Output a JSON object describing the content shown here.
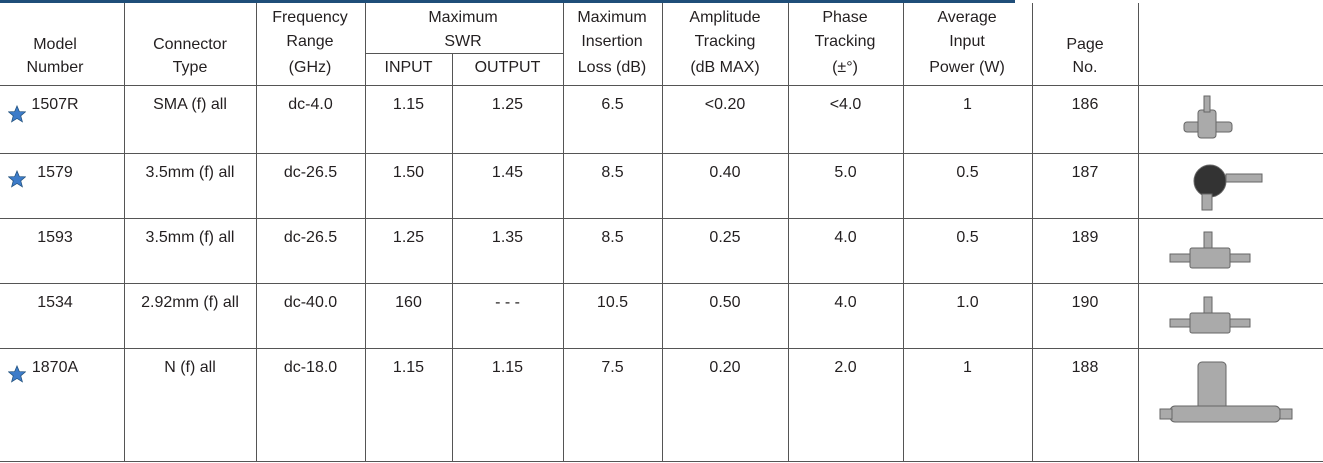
{
  "table": {
    "header": [
      [
        "Model",
        "Number"
      ],
      [
        "Connector",
        "Type"
      ],
      [
        "Frequency",
        "Range",
        "(GHz)"
      ],
      [
        "Maximum",
        "SWR"
      ],
      [
        "Maximum",
        "Insertion",
        "Loss (dB)"
      ],
      [
        "Amplitude",
        "Tracking",
        "(dB MAX)"
      ],
      [
        "Phase",
        "Tracking",
        "(±°)"
      ],
      [
        "Average",
        "Input",
        "Power (W)"
      ],
      [
        "Page",
        "No."
      ]
    ],
    "subheader": [
      "INPUT",
      "OUTPUT"
    ],
    "rows": [
      [
        "1507R",
        "SMA (f) all",
        "dc-4.0",
        "1.15",
        "1.25",
        "6.5",
        "<0.20",
        "<4.0",
        "1",
        "186"
      ],
      [
        "1579",
        "3.5mm (f) all",
        "dc-26.5",
        "1.50",
        "1.45",
        "8.5",
        "0.40",
        "5.0",
        "0.5",
        "187"
      ],
      [
        "1593",
        "3.5mm (f) all",
        "dc-26.5",
        "1.25",
        "1.35",
        "8.5",
        "0.25",
        "4.0",
        "0.5",
        "189"
      ],
      [
        "1534",
        "2.92mm (f) all",
        "dc-40.0",
        "160",
        "- - -",
        "10.5",
        "0.50",
        "4.0",
        "1.0",
        "190"
      ],
      [
        "1870A",
        "N (f) all",
        "dc-18.0",
        "1.15",
        "1.15",
        "7.5",
        "0.20",
        "2.0",
        "1",
        "188"
      ]
    ]
  }
}
